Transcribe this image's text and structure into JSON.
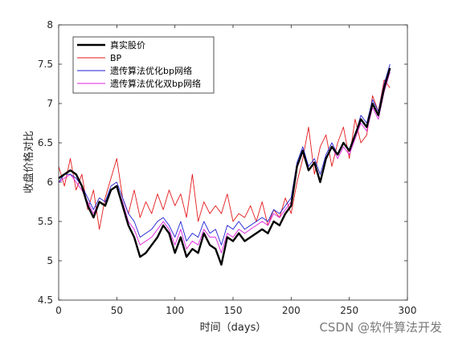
{
  "chart_data": {
    "type": "line",
    "xlabel": "时间（days）",
    "ylabel": "收盘价格对比",
    "xlim": [
      0,
      300
    ],
    "ylim": [
      4.5,
      8
    ],
    "xticks": [
      "0",
      "50",
      "100",
      "150",
      "200",
      "250",
      "300"
    ],
    "yticks": [
      "4.5",
      "5",
      "5.5",
      "6",
      "6.5",
      "7",
      "7.5",
      "8"
    ],
    "legend_position": "top-left",
    "grid": false,
    "series": [
      {
        "name": "真实股价",
        "color": "#000000",
        "x": [
          0,
          5,
          10,
          15,
          20,
          25,
          30,
          35,
          40,
          45,
          50,
          55,
          60,
          65,
          70,
          75,
          80,
          85,
          90,
          95,
          100,
          105,
          110,
          115,
          120,
          125,
          130,
          135,
          140,
          145,
          150,
          155,
          160,
          165,
          170,
          175,
          180,
          185,
          190,
          195,
          200,
          205,
          210,
          215,
          220,
          225,
          230,
          235,
          240,
          245,
          250,
          255,
          260,
          265,
          270,
          275,
          280,
          285
        ],
        "y": [
          6.05,
          6.1,
          6.15,
          6.1,
          5.95,
          5.7,
          5.55,
          5.75,
          5.7,
          5.9,
          5.95,
          5.7,
          5.45,
          5.3,
          5.05,
          5.1,
          5.2,
          5.3,
          5.45,
          5.35,
          5.1,
          5.3,
          5.05,
          5.15,
          5.1,
          5.35,
          5.2,
          5.15,
          4.95,
          5.3,
          5.25,
          5.35,
          5.25,
          5.3,
          5.35,
          5.4,
          5.35,
          5.5,
          5.45,
          5.6,
          5.7,
          6.2,
          6.4,
          6.15,
          6.25,
          6.0,
          6.3,
          6.45,
          6.35,
          6.5,
          6.4,
          6.6,
          6.8,
          6.7,
          7.0,
          6.85,
          7.2,
          7.45
        ]
      },
      {
        "name": "BP",
        "color": "#e41a1c",
        "x": [
          0,
          5,
          10,
          15,
          20,
          25,
          30,
          35,
          40,
          45,
          50,
          55,
          60,
          65,
          70,
          75,
          80,
          85,
          90,
          95,
          100,
          105,
          110,
          115,
          120,
          125,
          130,
          135,
          140,
          145,
          150,
          155,
          160,
          165,
          170,
          175,
          180,
          185,
          190,
          195,
          200,
          205,
          210,
          215,
          220,
          225,
          230,
          235,
          240,
          245,
          250,
          255,
          260,
          265,
          270,
          275,
          280,
          285
        ],
        "y": [
          6.2,
          5.95,
          6.3,
          5.9,
          6.1,
          5.65,
          5.9,
          5.4,
          5.8,
          6.05,
          6.3,
          5.8,
          5.6,
          5.9,
          5.55,
          5.75,
          5.6,
          5.85,
          5.65,
          5.9,
          5.7,
          5.85,
          5.55,
          6.1,
          5.5,
          5.75,
          5.6,
          5.7,
          5.6,
          5.85,
          5.5,
          5.6,
          5.55,
          5.7,
          5.5,
          5.75,
          5.45,
          5.65,
          5.55,
          5.8,
          5.6,
          6.0,
          6.3,
          6.7,
          6.1,
          6.45,
          6.6,
          6.2,
          6.5,
          6.7,
          6.3,
          6.8,
          6.5,
          6.6,
          7.1,
          6.9,
          7.3,
          7.2
        ]
      },
      {
        "name": "遗传算法优化bp网络",
        "color": "#1f1fd4",
        "x": [
          0,
          5,
          10,
          15,
          20,
          25,
          30,
          35,
          40,
          45,
          50,
          55,
          60,
          65,
          70,
          75,
          80,
          85,
          90,
          95,
          100,
          105,
          110,
          115,
          120,
          125,
          130,
          135,
          140,
          145,
          150,
          155,
          160,
          165,
          170,
          175,
          180,
          185,
          190,
          195,
          200,
          205,
          210,
          215,
          220,
          225,
          230,
          235,
          240,
          245,
          250,
          255,
          260,
          265,
          270,
          275,
          280,
          285
        ],
        "y": [
          6.0,
          6.1,
          6.1,
          6.05,
          5.95,
          5.8,
          5.65,
          5.8,
          5.75,
          5.95,
          6.0,
          5.8,
          5.6,
          5.5,
          5.3,
          5.35,
          5.4,
          5.5,
          5.55,
          5.45,
          5.3,
          5.5,
          5.25,
          5.35,
          5.3,
          5.5,
          5.35,
          5.4,
          5.2,
          5.45,
          5.4,
          5.5,
          5.4,
          5.45,
          5.5,
          5.55,
          5.5,
          5.65,
          5.6,
          5.7,
          5.8,
          6.25,
          6.45,
          6.2,
          6.3,
          6.1,
          6.35,
          6.5,
          6.35,
          6.5,
          6.4,
          6.6,
          6.85,
          6.75,
          7.05,
          6.9,
          7.25,
          7.5
        ]
      },
      {
        "name": "遗传算法优化双bp网络",
        "color": "#e020e0",
        "x": [
          0,
          5,
          10,
          15,
          20,
          25,
          30,
          35,
          40,
          45,
          50,
          55,
          60,
          65,
          70,
          75,
          80,
          85,
          90,
          95,
          100,
          105,
          110,
          115,
          120,
          125,
          130,
          135,
          140,
          145,
          150,
          155,
          160,
          165,
          170,
          175,
          180,
          185,
          190,
          195,
          200,
          205,
          210,
          215,
          220,
          225,
          230,
          235,
          240,
          245,
          250,
          255,
          260,
          265,
          270,
          275,
          280,
          285
        ],
        "y": [
          6.0,
          6.05,
          6.1,
          6.0,
          5.9,
          5.75,
          5.6,
          5.75,
          5.7,
          5.9,
          5.95,
          5.75,
          5.5,
          5.4,
          5.2,
          5.25,
          5.3,
          5.4,
          5.5,
          5.4,
          5.2,
          5.4,
          5.15,
          5.25,
          5.2,
          5.4,
          5.3,
          5.3,
          5.1,
          5.35,
          5.3,
          5.4,
          5.35,
          5.4,
          5.45,
          5.5,
          5.45,
          5.6,
          5.55,
          5.65,
          5.75,
          6.2,
          6.4,
          6.15,
          6.25,
          6.0,
          6.3,
          6.45,
          6.3,
          6.45,
          6.35,
          6.55,
          6.75,
          6.65,
          6.95,
          6.8,
          7.15,
          7.4
        ]
      }
    ]
  },
  "watermark": "CSDN @软件算法开发"
}
